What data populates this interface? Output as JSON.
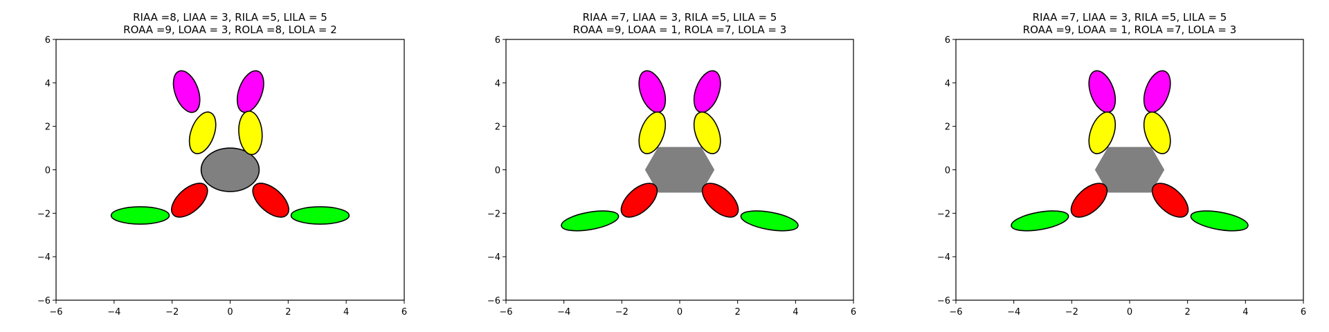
{
  "panels": [
    {
      "title_lines": [
        "RIAA =8, LIAA = 3, RILA =5, LILA = 5",
        "ROAA =9, LOAA = 3, ROLA =8, LOLA = 2"
      ],
      "xlim": [
        -6,
        6
      ],
      "ylim": [
        -6,
        6
      ],
      "xticks": [
        -6,
        -4,
        -2,
        0,
        2,
        4,
        6
      ],
      "yticks": [
        -6,
        -4,
        -2,
        0,
        2,
        4,
        6
      ],
      "body": {
        "shape": "ellipse",
        "cx": 0,
        "cy": 0,
        "rx": 1.0,
        "ry": 1.0,
        "color": "#808080"
      },
      "limbs": [
        {
          "name": "right-inner-upper",
          "cx": 0.7,
          "cy": 3.6,
          "rx": 0.4,
          "ry": 1.0,
          "angle": 20,
          "color": "#ff00ff"
        },
        {
          "name": "left-inner-upper",
          "cx": -1.5,
          "cy": 3.6,
          "rx": 0.4,
          "ry": 1.0,
          "angle": -20,
          "color": "#ff00ff"
        },
        {
          "name": "right-inner-lower",
          "cx": 0.7,
          "cy": 1.7,
          "rx": 0.4,
          "ry": 1.0,
          "angle": -5,
          "color": "#ffff00"
        },
        {
          "name": "left-inner-lower",
          "cx": -0.95,
          "cy": 1.7,
          "rx": 0.4,
          "ry": 1.0,
          "angle": 20,
          "color": "#ffff00"
        },
        {
          "name": "right-outer-upper",
          "cx": 1.4,
          "cy": -1.4,
          "rx": 0.4,
          "ry": 1.0,
          "angle": -48,
          "color": "#ff0000"
        },
        {
          "name": "left-outer-upper",
          "cx": -1.4,
          "cy": -1.4,
          "rx": 0.4,
          "ry": 1.0,
          "angle": 48,
          "color": "#ff0000"
        },
        {
          "name": "right-outer-lower",
          "cx": 3.1,
          "cy": -2.1,
          "rx": 1.0,
          "ry": 0.4,
          "angle": 0,
          "color": "#00ff00"
        },
        {
          "name": "left-outer-lower",
          "cx": -3.1,
          "cy": -2.1,
          "rx": 1.0,
          "ry": 0.4,
          "angle": 0,
          "color": "#00ff00"
        }
      ]
    },
    {
      "title_lines": [
        "RIAA =7, LIAA = 3, RILA =5, LILA = 5",
        "ROAA =9, LOAA = 1, ROLA =7, LOLA = 3"
      ],
      "xlim": [
        -6,
        6
      ],
      "ylim": [
        -6,
        6
      ],
      "xticks": [
        -6,
        -4,
        -2,
        0,
        2,
        4,
        6
      ],
      "yticks": [
        -6,
        -4,
        -2,
        0,
        2,
        4,
        6
      ],
      "body": {
        "shape": "hexagon",
        "cx": 0,
        "cy": 0,
        "w": 2.4,
        "h": 2.1,
        "color": "#808080"
      },
      "limbs": [
        {
          "name": "right-inner-upper",
          "cx": 0.95,
          "cy": 3.6,
          "rx": 0.4,
          "ry": 1.0,
          "angle": 20,
          "color": "#ff00ff"
        },
        {
          "name": "left-inner-upper",
          "cx": -0.95,
          "cy": 3.6,
          "rx": 0.4,
          "ry": 1.0,
          "angle": -20,
          "color": "#ff00ff"
        },
        {
          "name": "right-inner-lower",
          "cx": 0.95,
          "cy": 1.7,
          "rx": 0.4,
          "ry": 1.0,
          "angle": -20,
          "color": "#ffff00"
        },
        {
          "name": "left-inner-lower",
          "cx": -0.95,
          "cy": 1.7,
          "rx": 0.4,
          "ry": 1.0,
          "angle": 20,
          "color": "#ffff00"
        },
        {
          "name": "right-outer-upper",
          "cx": 1.4,
          "cy": -1.4,
          "rx": 0.4,
          "ry": 1.0,
          "angle": -48,
          "color": "#ff0000"
        },
        {
          "name": "left-outer-upper",
          "cx": -1.4,
          "cy": -1.4,
          "rx": 0.4,
          "ry": 1.0,
          "angle": 48,
          "color": "#ff0000"
        },
        {
          "name": "right-outer-lower",
          "cx": 3.1,
          "cy": -2.35,
          "rx": 1.0,
          "ry": 0.4,
          "angle": 10,
          "color": "#00ff00"
        },
        {
          "name": "left-outer-lower",
          "cx": -3.1,
          "cy": -2.35,
          "rx": 1.0,
          "ry": 0.4,
          "angle": -10,
          "color": "#00ff00"
        }
      ]
    },
    {
      "title_lines": [
        "RIAA =7, LIAA = 3, RILA =5, LILA = 5",
        "ROAA =9, LOAA = 1, ROLA =7, LOLA = 3"
      ],
      "xlim": [
        -6,
        6
      ],
      "ylim": [
        -6,
        6
      ],
      "xticks": [
        -6,
        -4,
        -2,
        0,
        2,
        4,
        6
      ],
      "yticks": [
        -6,
        -4,
        -2,
        0,
        2,
        4,
        6
      ],
      "body": {
        "shape": "hexagon",
        "cx": 0,
        "cy": 0,
        "w": 2.4,
        "h": 2.1,
        "color": "#808080"
      },
      "limbs": [
        {
          "name": "right-inner-upper",
          "cx": 0.95,
          "cy": 3.6,
          "rx": 0.4,
          "ry": 1.0,
          "angle": 20,
          "color": "#ff00ff"
        },
        {
          "name": "left-inner-upper",
          "cx": -0.95,
          "cy": 3.6,
          "rx": 0.4,
          "ry": 1.0,
          "angle": -20,
          "color": "#ff00ff"
        },
        {
          "name": "right-inner-lower",
          "cx": 0.95,
          "cy": 1.7,
          "rx": 0.4,
          "ry": 1.0,
          "angle": -20,
          "color": "#ffff00"
        },
        {
          "name": "left-inner-lower",
          "cx": -0.95,
          "cy": 1.7,
          "rx": 0.4,
          "ry": 1.0,
          "angle": 20,
          "color": "#ffff00"
        },
        {
          "name": "right-outer-upper",
          "cx": 1.4,
          "cy": -1.4,
          "rx": 0.4,
          "ry": 1.0,
          "angle": -48,
          "color": "#ff0000"
        },
        {
          "name": "left-outer-upper",
          "cx": -1.4,
          "cy": -1.4,
          "rx": 0.4,
          "ry": 1.0,
          "angle": 48,
          "color": "#ff0000"
        },
        {
          "name": "right-outer-lower",
          "cx": 3.1,
          "cy": -2.35,
          "rx": 1.0,
          "ry": 0.4,
          "angle": 10,
          "color": "#00ff00"
        },
        {
          "name": "left-outer-lower",
          "cx": -3.1,
          "cy": -2.35,
          "rx": 1.0,
          "ry": 0.4,
          "angle": -10,
          "color": "#00ff00"
        }
      ]
    }
  ]
}
